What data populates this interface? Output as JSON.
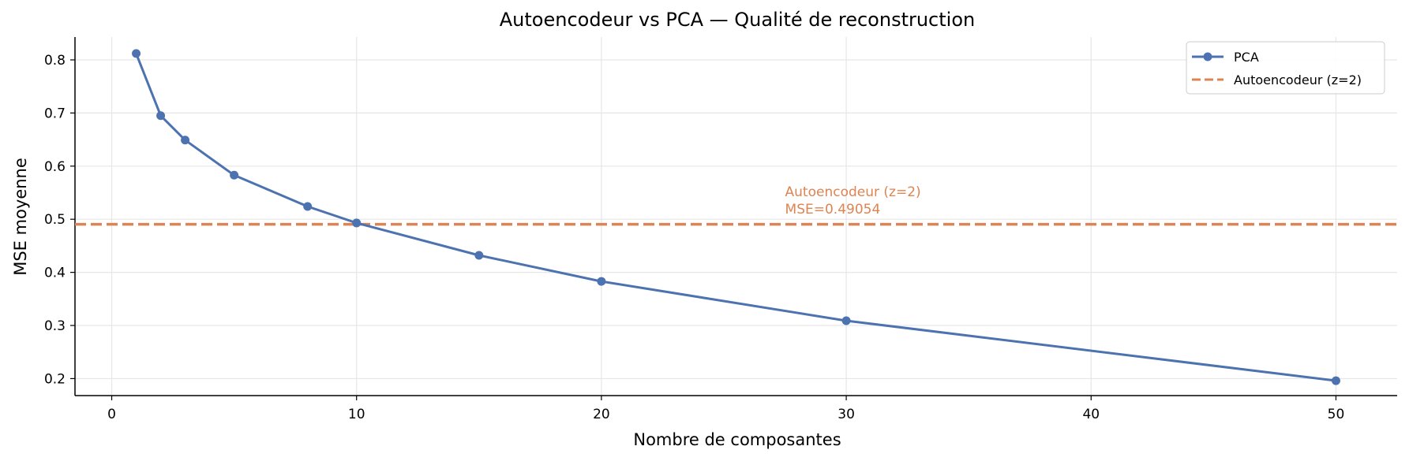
{
  "chart_data": {
    "type": "line",
    "title": "Autoencodeur vs PCA — Qualité de reconstruction",
    "xlabel": "Nombre de composantes",
    "ylabel": "MSE moyenne",
    "xlim": [
      -1.5,
      52.5
    ],
    "ylim": [
      0.168,
      0.843
    ],
    "xticks": [
      0,
      10,
      20,
      30,
      40,
      50
    ],
    "yticks": [
      0.2,
      0.3,
      0.4,
      0.5,
      0.6,
      0.7,
      0.8
    ],
    "grid": true,
    "legend_position": "top-right",
    "series": [
      {
        "name": "PCA",
        "color": "#4c72b0",
        "marker": "circle",
        "x": [
          1,
          2,
          3,
          5,
          8,
          10,
          15,
          20,
          30,
          50
        ],
        "y": [
          0.812,
          0.695,
          0.649,
          0.583,
          0.524,
          0.493,
          0.432,
          0.383,
          0.309,
          0.196
        ]
      },
      {
        "name": "Autoencodeur (z=2)",
        "color": "#dd8452",
        "style": "dashed-horizontal",
        "y": 0.49054
      }
    ],
    "annotation": {
      "line1": "Autoencodeur (z=2)",
      "line2": "MSE=0.49054",
      "x": 27.5,
      "y": 0.515,
      "color": "#dd8452"
    }
  }
}
